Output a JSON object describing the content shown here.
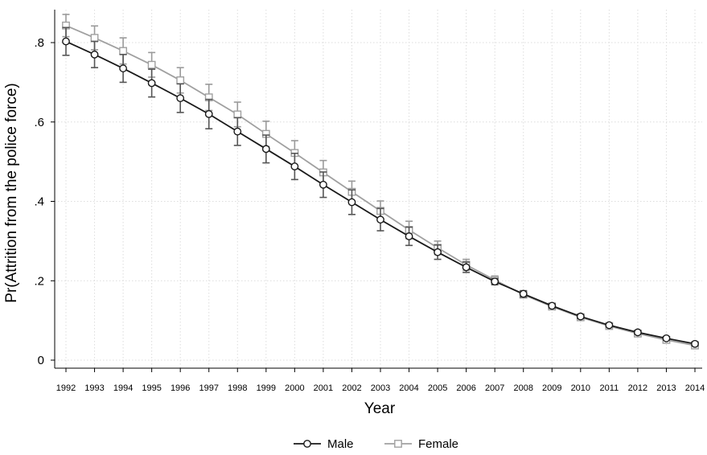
{
  "chart_data": {
    "type": "line",
    "title": "",
    "xlabel": "Year",
    "ylabel": "Pr(Attrition from the police force)",
    "x": [
      1992,
      1993,
      1994,
      1995,
      1996,
      1997,
      1998,
      1999,
      2000,
      2001,
      2002,
      2003,
      2004,
      2005,
      2006,
      2007,
      2008,
      2009,
      2010,
      2011,
      2012,
      2013,
      2014
    ],
    "xlim": [
      1992,
      2014
    ],
    "ylim": [
      0,
      0.8
    ],
    "yticks": [
      0,
      0.2,
      0.4,
      0.6,
      0.8
    ],
    "ytick_labels": [
      "0",
      ".2",
      ".4",
      ".6",
      ".8"
    ],
    "grid": true,
    "legend_position": "bottom",
    "series": [
      {
        "name": "Male",
        "marker": "circle",
        "color": "#1a1a1a",
        "values": [
          0.803,
          0.77,
          0.735,
          0.698,
          0.66,
          0.62,
          0.576,
          0.532,
          0.488,
          0.442,
          0.398,
          0.354,
          0.312,
          0.272,
          0.234,
          0.198,
          0.167,
          0.137,
          0.11,
          0.088,
          0.07,
          0.055,
          0.041
        ],
        "ci_low": [
          0.768,
          0.737,
          0.7,
          0.663,
          0.624,
          0.583,
          0.541,
          0.497,
          0.455,
          0.41,
          0.367,
          0.326,
          0.289,
          0.254,
          0.221,
          0.19,
          0.159,
          0.131,
          0.105,
          0.084,
          0.066,
          0.051,
          0.036
        ],
        "ci_high": [
          0.838,
          0.803,
          0.77,
          0.733,
          0.696,
          0.657,
          0.611,
          0.567,
          0.521,
          0.474,
          0.429,
          0.382,
          0.335,
          0.29,
          0.247,
          0.206,
          0.175,
          0.143,
          0.115,
          0.092,
          0.074,
          0.059,
          0.046
        ]
      },
      {
        "name": "Female",
        "marker": "square",
        "color": "#a0a0a0",
        "values": [
          0.843,
          0.812,
          0.779,
          0.744,
          0.705,
          0.662,
          0.619,
          0.57,
          0.522,
          0.473,
          0.424,
          0.376,
          0.328,
          0.283,
          0.24,
          0.202,
          0.165,
          0.135,
          0.108,
          0.086,
          0.067,
          0.051,
          0.037
        ],
        "ci_low": [
          0.815,
          0.782,
          0.746,
          0.713,
          0.673,
          0.629,
          0.588,
          0.538,
          0.491,
          0.443,
          0.397,
          0.351,
          0.306,
          0.266,
          0.226,
          0.192,
          0.158,
          0.13,
          0.104,
          0.082,
          0.063,
          0.047,
          0.033
        ],
        "ci_high": [
          0.871,
          0.842,
          0.812,
          0.775,
          0.737,
          0.695,
          0.65,
          0.602,
          0.553,
          0.503,
          0.451,
          0.401,
          0.35,
          0.3,
          0.254,
          0.212,
          0.172,
          0.14,
          0.112,
          0.09,
          0.071,
          0.055,
          0.041
        ]
      }
    ]
  }
}
